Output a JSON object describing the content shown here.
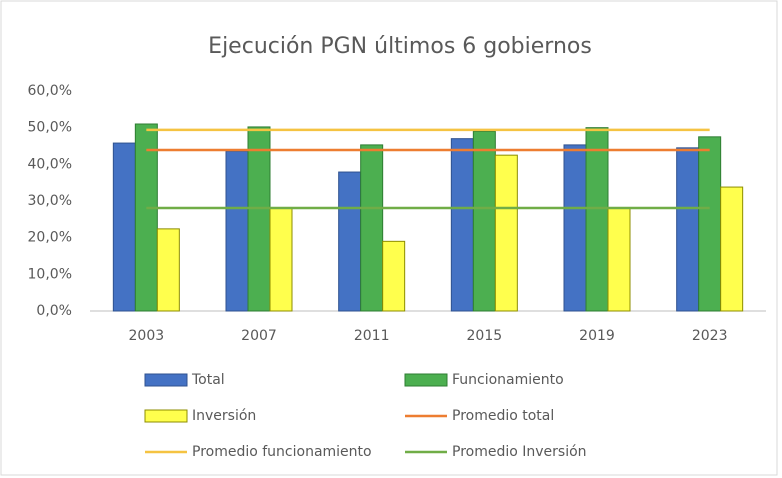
{
  "chart_data": {
    "type": "bar",
    "title": "Ejecución  PGN  últimos  6 gobiernos",
    "categories": [
      "2003",
      "2007",
      "2011",
      "2015",
      "2019",
      "2023"
    ],
    "series": [
      {
        "name": "Total",
        "color": "#4472c4",
        "values": [
          45.8,
          43.6,
          37.9,
          47,
          45.3,
          44.5
        ]
      },
      {
        "name": "Funcionamiento",
        "color": "#4caf50",
        "values": [
          51,
          50.2,
          45.3,
          49,
          50,
          47.5
        ]
      },
      {
        "name": "Inversión",
        "color": "#ffff4d",
        "values": [
          22.4,
          28,
          19,
          42.5,
          28,
          33.8
        ]
      }
    ],
    "reference_lines": [
      {
        "name": "Promedio total",
        "color": "#ed7d31",
        "value": 43.9
      },
      {
        "name": "Promedio funcionamiento",
        "color": "#f5c342",
        "value": 49.4
      },
      {
        "name": "Promedio Inversión",
        "color": "#70ad47",
        "value": 28.1
      }
    ],
    "ylim": [
      0,
      60
    ],
    "yticks": [
      {
        "value": 0,
        "label": "0,0%"
      },
      {
        "value": 10,
        "label": "10,0%"
      },
      {
        "value": 20,
        "label": "20,0%"
      },
      {
        "value": 30,
        "label": "30,0%"
      },
      {
        "value": 40,
        "label": "40,0%"
      },
      {
        "value": 50,
        "label": "50,0%"
      },
      {
        "value": 60,
        "label": "60,0%"
      }
    ],
    "grid": false
  }
}
